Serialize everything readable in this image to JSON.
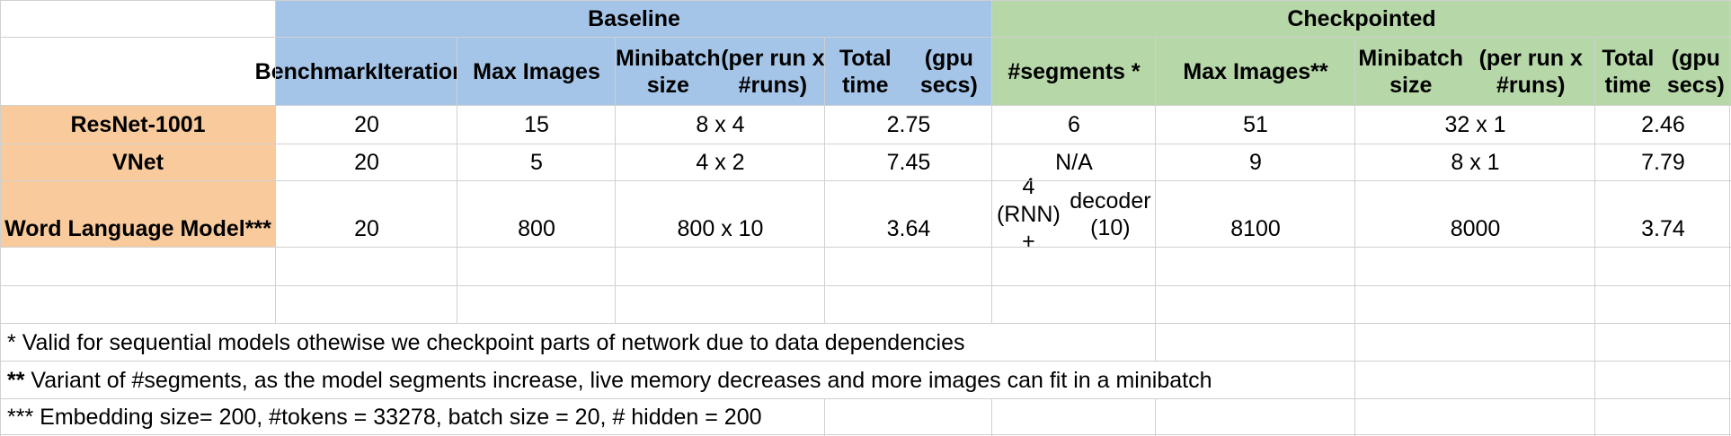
{
  "table": {
    "groups": {
      "baseline": "Baseline",
      "checkpointed": "Checkpointed"
    },
    "columns": [
      [
        "Benchmark",
        "Iterations"
      ],
      [
        "Max Images"
      ],
      [
        "Minibatch size",
        "(per run x #runs)"
      ],
      [
        "Total time",
        "(gpu secs)"
      ],
      [
        "#segments *"
      ],
      [
        "Max Images**"
      ],
      [
        "Minibatch size",
        "(per run x #runs)"
      ],
      [
        "Total time",
        "(gpu secs)"
      ]
    ],
    "rows": [
      {
        "name": "ResNet-1001",
        "cells": [
          [
            "20"
          ],
          [
            "15"
          ],
          [
            "8 x 4"
          ],
          [
            "2.75"
          ],
          [
            "6"
          ],
          [
            "51"
          ],
          [
            "32 x 1"
          ],
          [
            "2.46"
          ]
        ]
      },
      {
        "name": "VNet",
        "cells": [
          [
            "20"
          ],
          [
            "5"
          ],
          [
            "4 x 2"
          ],
          [
            "7.45"
          ],
          [
            "N/A"
          ],
          [
            "9"
          ],
          [
            "8 x 1"
          ],
          [
            "7.79"
          ]
        ]
      },
      {
        "name": "Word Language Model***",
        "cells": [
          [
            "20"
          ],
          [
            "800"
          ],
          [
            "800 x 10"
          ],
          [
            "3.64"
          ],
          [
            "4 (RNN) +",
            "decoder (10)"
          ],
          [
            "8100"
          ],
          [
            "8000"
          ],
          [
            "3.74"
          ]
        ]
      }
    ],
    "notes": [
      {
        "marker": "*",
        "text": "Valid for sequential models othewise we checkpoint parts of network due to data dependencies"
      },
      {
        "marker": "**",
        "text": "Variant of #segments, as the model segments increase, live memory decreases and more images can fit in a minibatch"
      },
      {
        "marker": "***",
        "text": "Embedding size= 200, #tokens = 33278, batch size = 20, # hidden = 200"
      }
    ]
  },
  "colors": {
    "baseline_header": "#a4c5e8",
    "checkpointed_header": "#b6d7a8",
    "row_label": "#f9cb9c",
    "gridline": "#d0d0d0"
  }
}
